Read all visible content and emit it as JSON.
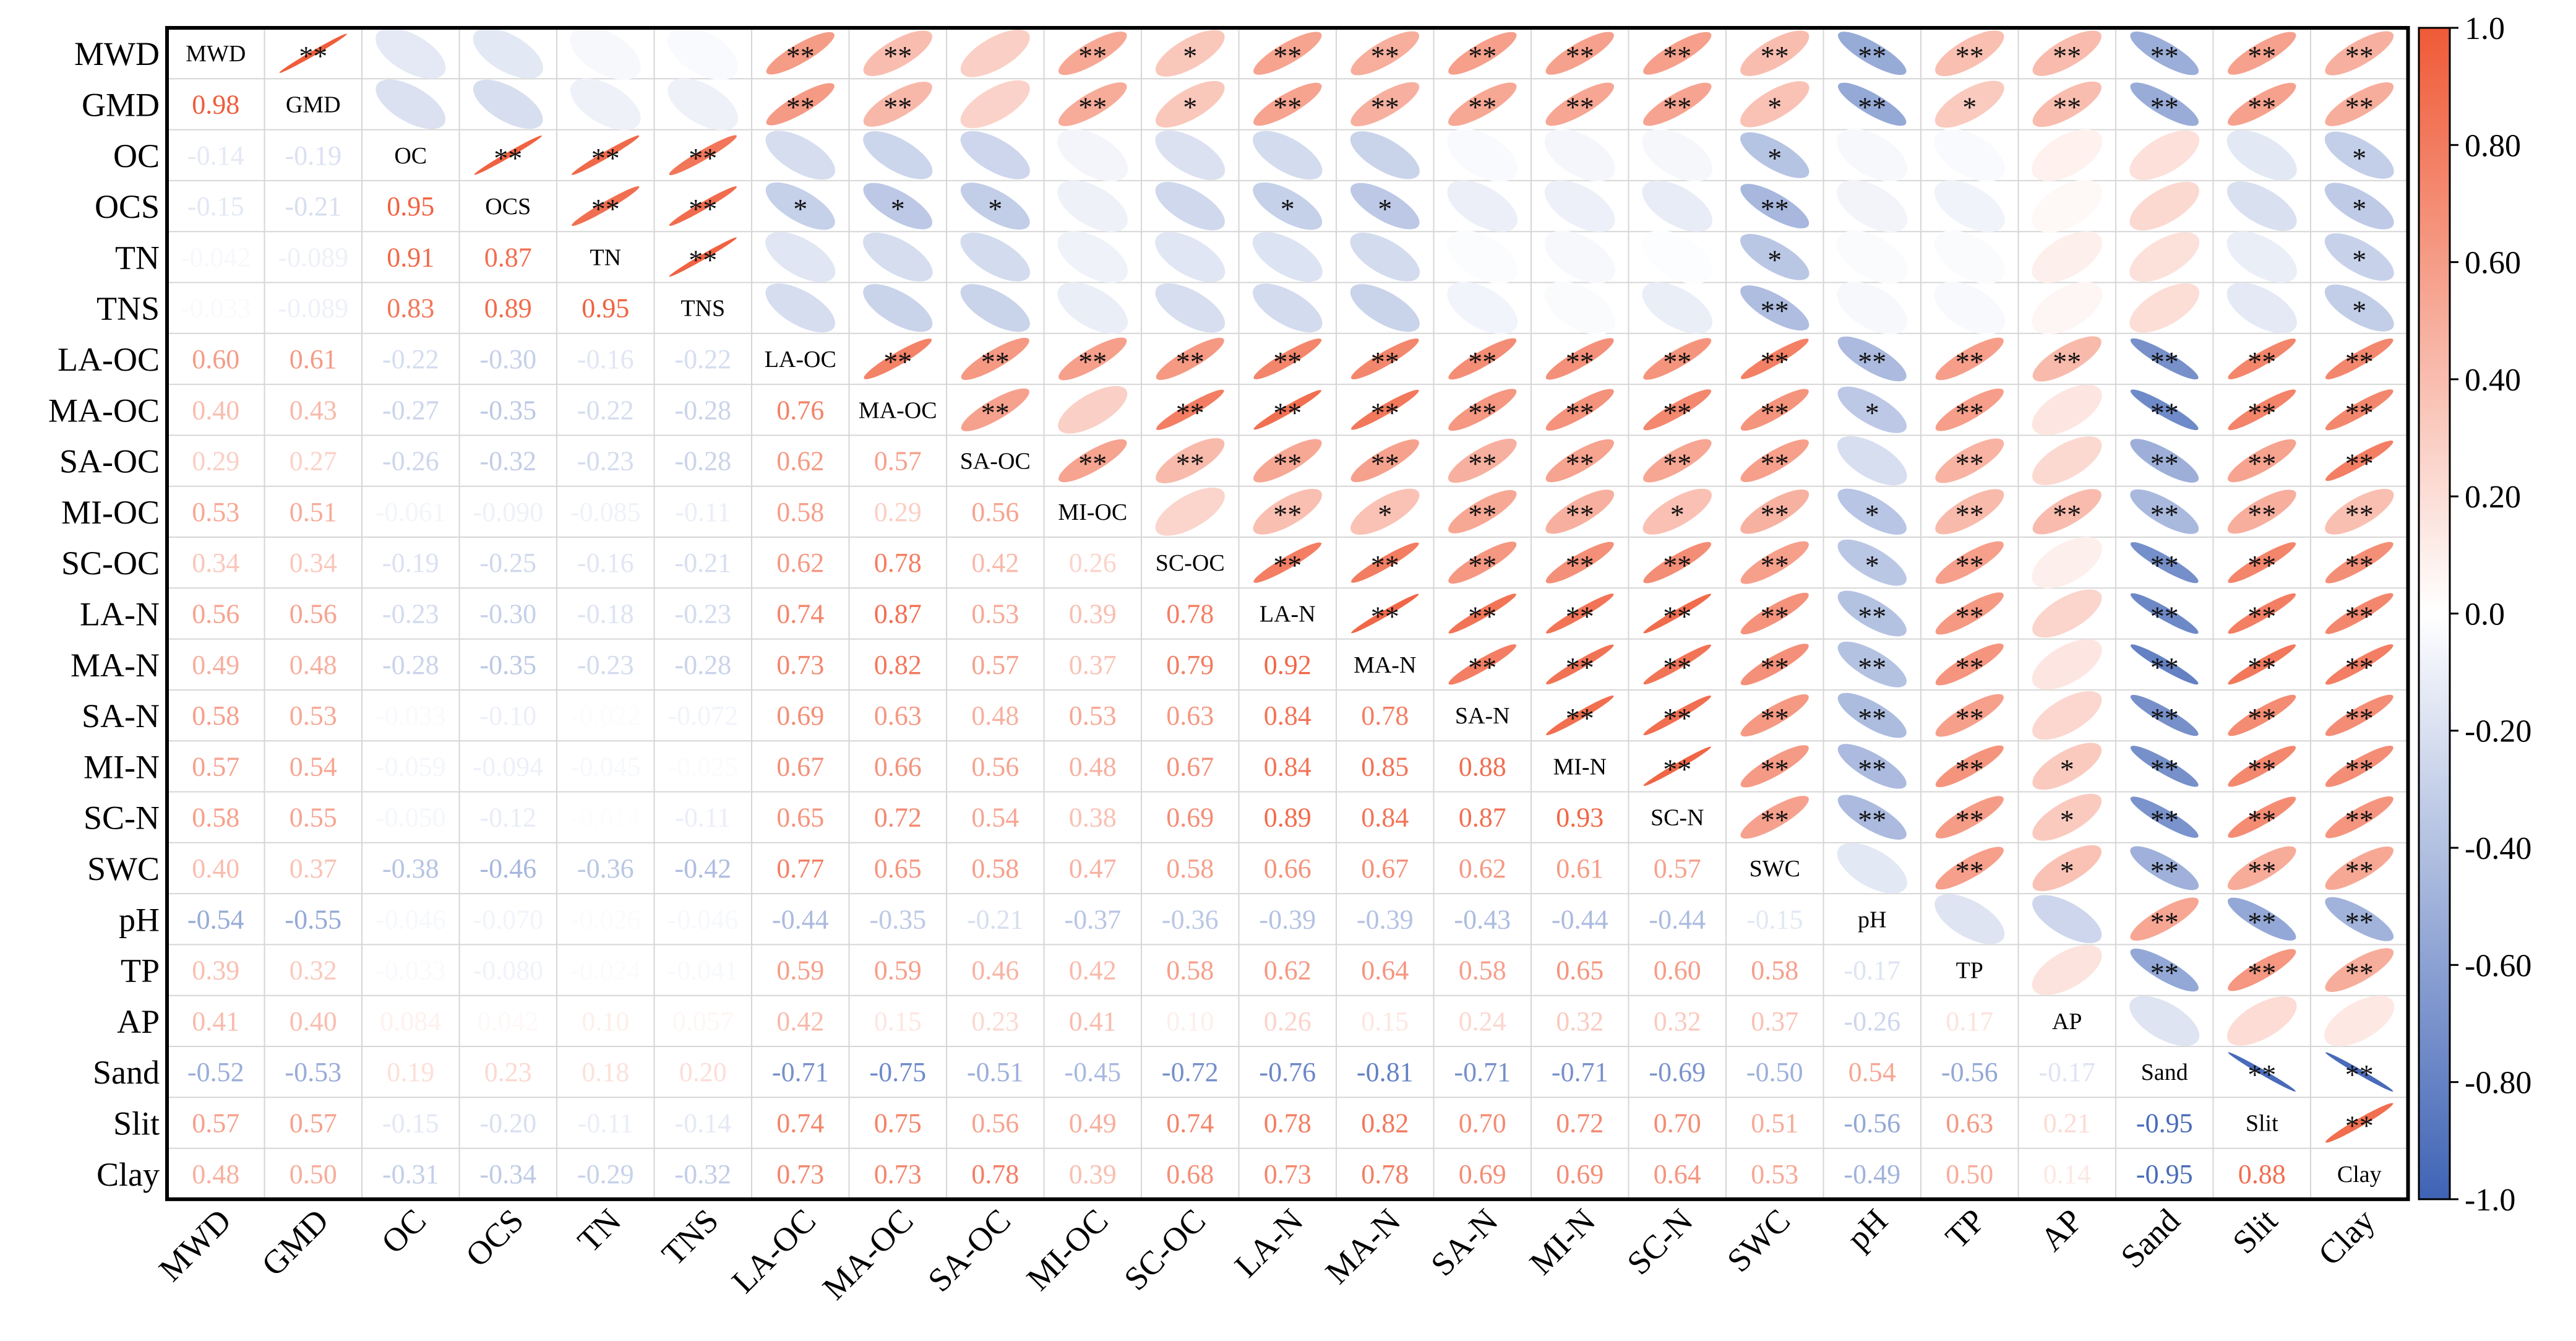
{
  "chart_data": {
    "type": "heatmap",
    "title": "",
    "variables": [
      "MWD",
      "GMD",
      "OC",
      "OCS",
      "TN",
      "TNS",
      "LA-OC",
      "MA-OC",
      "SA-OC",
      "MI-OC",
      "SC-OC",
      "LA-N",
      "MA-N",
      "SA-N",
      "MI-N",
      "SC-N",
      "SWC",
      "pH",
      "TP",
      "AP",
      "Sand",
      "Slit",
      "Clay"
    ],
    "lower_triangle_labels": [
      [],
      [
        "0.98"
      ],
      [
        "-0.14",
        "-0.19"
      ],
      [
        "-0.15",
        "-0.21",
        "0.95"
      ],
      [
        "-0.042",
        "-0.089",
        "0.91",
        "0.87"
      ],
      [
        "-0.033",
        "-0.089",
        "0.83",
        "0.89",
        "0.95"
      ],
      [
        "0.60",
        "0.61",
        "-0.22",
        "-0.30",
        "-0.16",
        "-0.22"
      ],
      [
        "0.40",
        "0.43",
        "-0.27",
        "-0.35",
        "-0.22",
        "-0.28",
        "0.76"
      ],
      [
        "0.29",
        "0.27",
        "-0.26",
        "-0.32",
        "-0.23",
        "-0.28",
        "0.62",
        "0.57"
      ],
      [
        "0.53",
        "0.51",
        "-0.061",
        "-0.090",
        "-0.085",
        "-0.11",
        "0.58",
        "0.29",
        "0.56"
      ],
      [
        "0.34",
        "0.34",
        "-0.19",
        "-0.25",
        "-0.16",
        "-0.21",
        "0.62",
        "0.78",
        "0.42",
        "0.26"
      ],
      [
        "0.56",
        "0.56",
        "-0.23",
        "-0.30",
        "-0.18",
        "-0.23",
        "0.74",
        "0.87",
        "0.53",
        "0.39",
        "0.78"
      ],
      [
        "0.49",
        "0.48",
        "-0.28",
        "-0.35",
        "-0.23",
        "-0.28",
        "0.73",
        "0.82",
        "0.57",
        "0.37",
        "0.79",
        "0.92"
      ],
      [
        "0.58",
        "0.53",
        "-0.033",
        "-0.10",
        "-0.022",
        "-0.072",
        "0.69",
        "0.63",
        "0.48",
        "0.53",
        "0.63",
        "0.84",
        "0.78"
      ],
      [
        "0.57",
        "0.54",
        "-0.059",
        "-0.094",
        "-0.045",
        "-0.025",
        "0.67",
        "0.66",
        "0.56",
        "0.48",
        "0.67",
        "0.84",
        "0.85",
        "0.88"
      ],
      [
        "0.58",
        "0.55",
        "-0.050",
        "-0.12",
        "-0.014",
        "-0.11",
        "0.65",
        "0.72",
        "0.54",
        "0.38",
        "0.69",
        "0.89",
        "0.84",
        "0.87",
        "0.93"
      ],
      [
        "0.40",
        "0.37",
        "-0.38",
        "-0.46",
        "-0.36",
        "-0.42",
        "0.77",
        "0.65",
        "0.58",
        "0.47",
        "0.58",
        "0.66",
        "0.67",
        "0.62",
        "0.61",
        "0.57"
      ],
      [
        "-0.54",
        "-0.55",
        "-0.046",
        "-0.070",
        "-0.026",
        "-0.046",
        "-0.44",
        "-0.35",
        "-0.21",
        "-0.37",
        "-0.36",
        "-0.39",
        "-0.39",
        "-0.43",
        "-0.44",
        "-0.44",
        "-0.15"
      ],
      [
        "0.39",
        "0.32",
        "-0.033",
        "-0.080",
        "-0.024",
        "-0.041",
        "0.59",
        "0.59",
        "0.46",
        "0.42",
        "0.58",
        "0.62",
        "0.64",
        "0.58",
        "0.65",
        "0.60",
        "0.58",
        "-0.17"
      ],
      [
        "0.41",
        "0.40",
        "0.084",
        "0.042",
        "0.10",
        "0.057",
        "0.42",
        "0.15",
        "0.23",
        "0.41",
        "0.10",
        "0.26",
        "0.15",
        "0.24",
        "0.32",
        "0.32",
        "0.37",
        "-0.26",
        "0.17"
      ],
      [
        "-0.52",
        "-0.53",
        "0.19",
        "0.23",
        "0.18",
        "0.20",
        "-0.71",
        "-0.75",
        "-0.51",
        "-0.45",
        "-0.72",
        "-0.76",
        "-0.81",
        "-0.71",
        "-0.71",
        "-0.69",
        "-0.50",
        "0.54",
        "-0.56",
        "-0.17"
      ],
      [
        "0.57",
        "0.57",
        "-0.15",
        "-0.20",
        "-0.11",
        "-0.14",
        "0.74",
        "0.75",
        "0.56",
        "0.49",
        "0.74",
        "0.78",
        "0.82",
        "0.70",
        "0.72",
        "0.70",
        "0.51",
        "-0.56",
        "0.63",
        "0.21",
        "-0.95"
      ],
      [
        "0.48",
        "0.50",
        "-0.31",
        "-0.34",
        "-0.29",
        "-0.32",
        "0.73",
        "0.73",
        "0.78",
        "0.39",
        "0.68",
        "0.73",
        "0.78",
        "0.69",
        "0.69",
        "0.64",
        "0.53",
        "-0.49",
        "0.50",
        "0.14",
        "-0.95",
        "0.88"
      ]
    ],
    "significance_upper": [
      [],
      [
        "**"
      ],
      [
        "",
        ""
      ],
      [
        "",
        "",
        "**"
      ],
      [
        "",
        "",
        "**",
        "**"
      ],
      [
        "",
        "",
        "**",
        "**",
        "**"
      ],
      [
        "**",
        "**",
        "",
        "*",
        "",
        ""
      ],
      [
        "**",
        "**",
        "",
        "*",
        "",
        "",
        " **"
      ],
      [
        "",
        "",
        "",
        "*",
        "",
        "",
        "**",
        "**"
      ],
      [
        "**",
        "**",
        "",
        "",
        "",
        "",
        "**",
        "",
        "**"
      ],
      [
        "*",
        "*",
        "",
        "",
        "",
        "",
        "**",
        "**",
        "**",
        ""
      ],
      [
        "**",
        "**",
        "",
        "*",
        "",
        "",
        "**",
        "**",
        "**",
        "**",
        "**"
      ],
      [
        "**",
        "**",
        "",
        "*",
        "",
        "",
        "**",
        "**",
        "**",
        "*",
        "**",
        "**"
      ],
      [
        "**",
        "**",
        "",
        "",
        "",
        "",
        "**",
        "**",
        "**",
        "**",
        "**",
        "**",
        "**"
      ],
      [
        "**",
        "**",
        "",
        "",
        "",
        "",
        "**",
        "**",
        "**",
        "**",
        "**",
        "**",
        "**",
        "**"
      ],
      [
        "**",
        "**",
        "",
        "",
        "",
        "",
        "**",
        "**",
        "**",
        "*",
        "**",
        "**",
        "**",
        "**",
        "**"
      ],
      [
        "**",
        "*",
        "*",
        "**",
        "*",
        "**",
        "**",
        "**",
        "**",
        "**",
        "**",
        "**",
        "**",
        "**",
        "**",
        "**"
      ],
      [
        "**",
        "**",
        "",
        "",
        "",
        "",
        "**",
        "*",
        "",
        "*",
        "*",
        "**",
        "**",
        "**",
        "**",
        "**",
        ""
      ],
      [
        "**",
        "*",
        "",
        "",
        "",
        "",
        "**",
        "**",
        "**",
        "**",
        "**",
        "**",
        "**",
        "**",
        "**",
        "**",
        "**",
        ""
      ],
      [
        "**",
        "**",
        "",
        "",
        "",
        "",
        "**",
        "",
        "",
        "**",
        "",
        "",
        "",
        "",
        "*",
        "*",
        "*",
        "",
        ""
      ],
      [
        "**",
        "**",
        "",
        "",
        "",
        "",
        "**",
        "**",
        "**",
        "**",
        "**",
        "**",
        "**",
        "**",
        "**",
        "**",
        "**",
        "**",
        "**",
        ""
      ],
      [
        "**",
        "**",
        "",
        "",
        "",
        "",
        "**",
        "**",
        "**",
        "**",
        "**",
        "**",
        "**",
        "**",
        "**",
        "**",
        "**",
        "**",
        "**",
        "",
        "**"
      ],
      [
        "**",
        "**",
        "*",
        "*",
        "*",
        "*",
        "**",
        "**",
        "**",
        "**",
        "**",
        "**",
        "**",
        "**",
        "**",
        "**",
        "**",
        "**",
        "**",
        "",
        "**",
        "**"
      ]
    ],
    "colorbar": {
      "ticks": [
        "1.0",
        "0.80",
        "0.60",
        "0.40",
        "0.20",
        "0.0",
        "-0.20",
        "-0.40",
        "-0.60",
        "-0.80",
        "-1.0"
      ],
      "range": [
        -1,
        1
      ],
      "colors": {
        "positive": "#ef5a37",
        "neutral": "#ffffff",
        "negative": "#3f63b5"
      }
    }
  }
}
